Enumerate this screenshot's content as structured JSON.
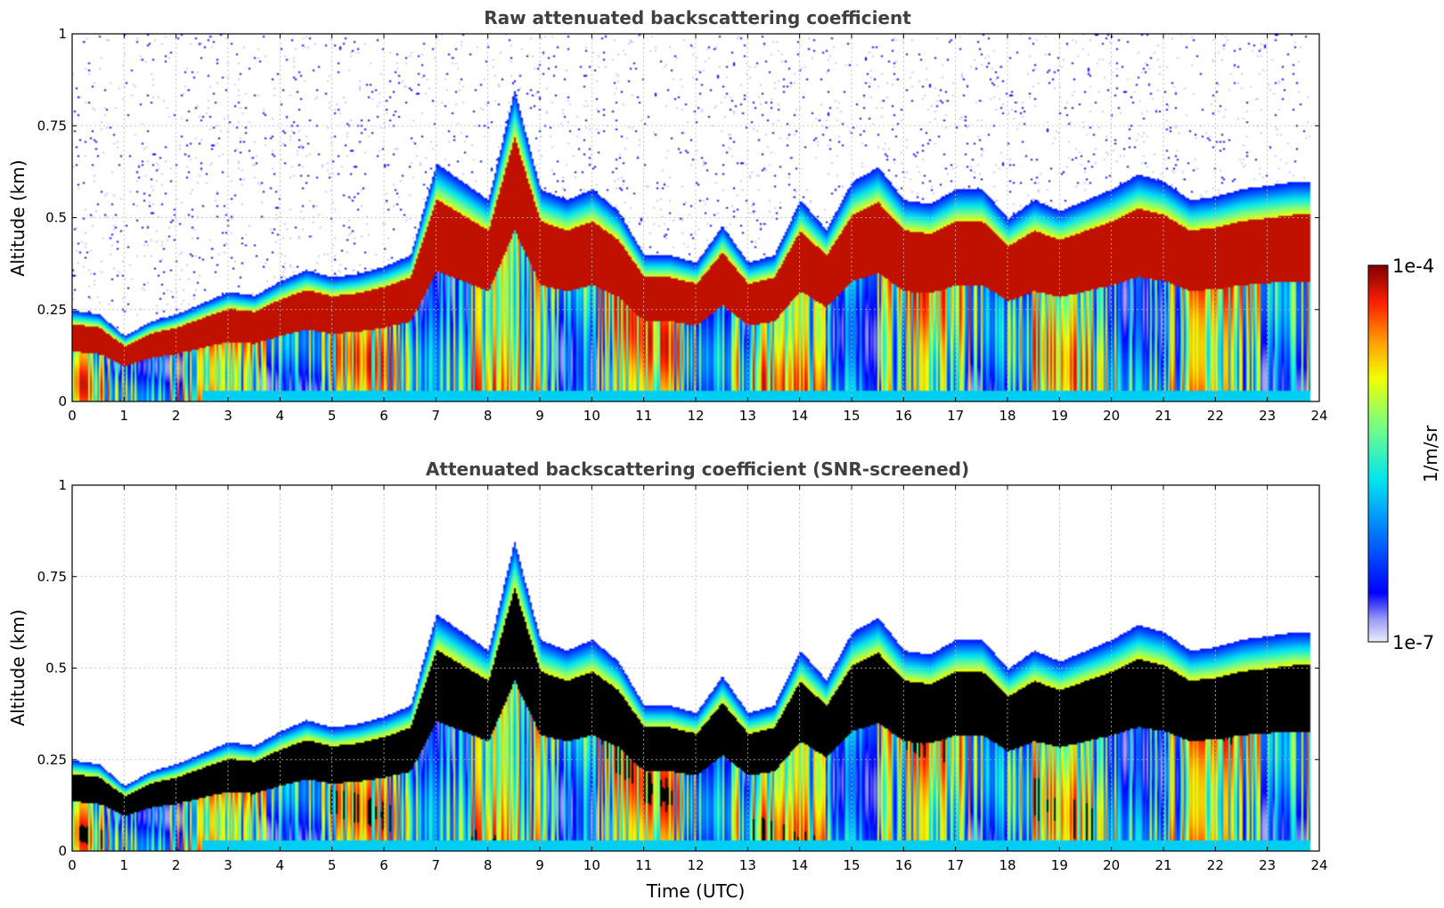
{
  "chart_data": [
    {
      "type": "heatmap",
      "title": "Raw attenuated backscattering coefficient",
      "xlabel": "",
      "ylabel": "Altitude (km)",
      "xlim": [
        0,
        24
      ],
      "ylim": [
        0,
        1
      ],
      "x_ticks": [
        "0",
        "1",
        "2",
        "3",
        "4",
        "5",
        "6",
        "7",
        "8",
        "9",
        "10",
        "11",
        "12",
        "13",
        "14",
        "15",
        "16",
        "17",
        "18",
        "19",
        "20",
        "21",
        "22",
        "23",
        "24"
      ],
      "y_ticks": [
        "0",
        "0.25",
        "0.5",
        "0.75",
        "1"
      ],
      "grid": true,
      "screened": false,
      "layer_top_km": {
        "time_utc": [
          0,
          0.5,
          1,
          1.5,
          2,
          2.5,
          3,
          3.5,
          4,
          4.5,
          5,
          5.5,
          6,
          6.5,
          7,
          7.5,
          8,
          8.5,
          9,
          9.5,
          10,
          10.5,
          11,
          11.5,
          12,
          12.5,
          13,
          13.5,
          14,
          14.5,
          15,
          15.5,
          16,
          16.5,
          17,
          17.5,
          18,
          18.5,
          19,
          19.5,
          20,
          20.5,
          21,
          21.5,
          22,
          22.5,
          23,
          23.5,
          23.8
        ],
        "altitude_km": [
          0.25,
          0.24,
          0.18,
          0.22,
          0.24,
          0.27,
          0.3,
          0.29,
          0.33,
          0.36,
          0.34,
          0.35,
          0.37,
          0.4,
          0.65,
          0.6,
          0.55,
          0.85,
          0.58,
          0.55,
          0.58,
          0.52,
          0.4,
          0.4,
          0.38,
          0.48,
          0.38,
          0.4,
          0.55,
          0.47,
          0.6,
          0.64,
          0.55,
          0.54,
          0.58,
          0.58,
          0.5,
          0.55,
          0.52,
          0.55,
          0.58,
          0.62,
          0.6,
          0.55,
          0.56,
          0.58,
          0.59,
          0.6,
          0.6
        ]
      },
      "colorbar": {
        "min_label": "1e-7",
        "max_label": "1e-4",
        "label": "1/m/sr",
        "scale": "log",
        "colormap": "jet"
      }
    },
    {
      "type": "heatmap",
      "title": "Attenuated backscattering coefficient (SNR-screened)",
      "xlabel": "Time (UTC)",
      "ylabel": "Altitude (km)",
      "xlim": [
        0,
        24
      ],
      "ylim": [
        0,
        1
      ],
      "x_ticks": [
        "0",
        "1",
        "2",
        "3",
        "4",
        "5",
        "6",
        "7",
        "8",
        "9",
        "10",
        "11",
        "12",
        "13",
        "14",
        "15",
        "16",
        "17",
        "18",
        "19",
        "20",
        "21",
        "22",
        "23",
        "24"
      ],
      "y_ticks": [
        "0",
        "0.25",
        "0.5",
        "0.75",
        "1"
      ],
      "grid": true,
      "screened": true,
      "saturated_color": "#000000"
    }
  ]
}
